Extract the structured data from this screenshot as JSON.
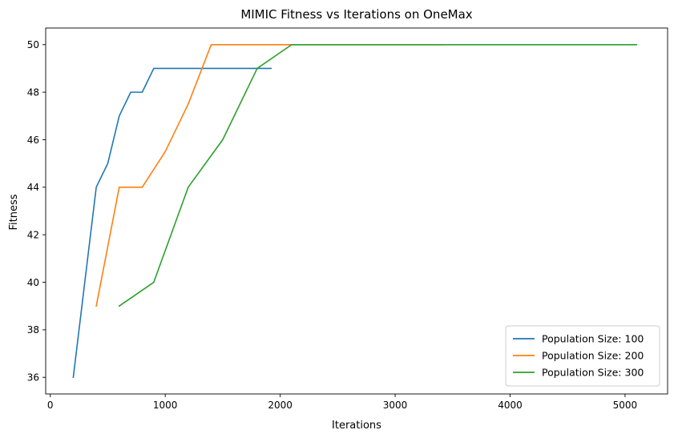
{
  "chart_data": {
    "type": "line",
    "title": "MIMIC Fitness vs Iterations on OneMax",
    "xlabel": "Iterations",
    "ylabel": "Fitness",
    "xlim": [
      -40,
      5370
    ],
    "ylim": [
      35.3,
      50.7
    ],
    "xticks": [
      0,
      1000,
      2000,
      3000,
      4000,
      5000
    ],
    "yticks": [
      36,
      38,
      40,
      42,
      44,
      46,
      48,
      50
    ],
    "grid": false,
    "legend_position": "lower right",
    "series": [
      {
        "name": "Population Size: 100",
        "color": "#1f77b4",
        "x": [
          200,
          400,
          500,
          600,
          700,
          800,
          900,
          1000,
          1100,
          1200,
          1300,
          1400,
          1500,
          1600,
          1700,
          1800,
          1900,
          1920
        ],
        "y": [
          36,
          44,
          45,
          47,
          48,
          48,
          49,
          49,
          49,
          49,
          49,
          49,
          49,
          49,
          49,
          49,
          49,
          49
        ]
      },
      {
        "name": "Population Size: 200",
        "color": "#ff7f0e",
        "x": [
          400,
          600,
          800,
          1000,
          1200,
          1400,
          1600,
          1800,
          2000,
          2200,
          2400,
          2600,
          2800,
          3000,
          3200,
          3420
        ],
        "y": [
          39,
          44,
          44,
          45.5,
          47.5,
          50,
          50,
          50,
          50,
          50,
          50,
          50,
          50,
          50,
          50,
          50
        ]
      },
      {
        "name": "Population Size: 300",
        "color": "#2ca02c",
        "x": [
          600,
          900,
          1200,
          1500,
          1800,
          2100,
          2400,
          2700,
          3000,
          3300,
          3600,
          3900,
          4200,
          4500,
          4800,
          5100
        ],
        "y": [
          39,
          40,
          44,
          46,
          49,
          50,
          50,
          50,
          50,
          50,
          50,
          50,
          50,
          50,
          50,
          50
        ]
      }
    ]
  }
}
